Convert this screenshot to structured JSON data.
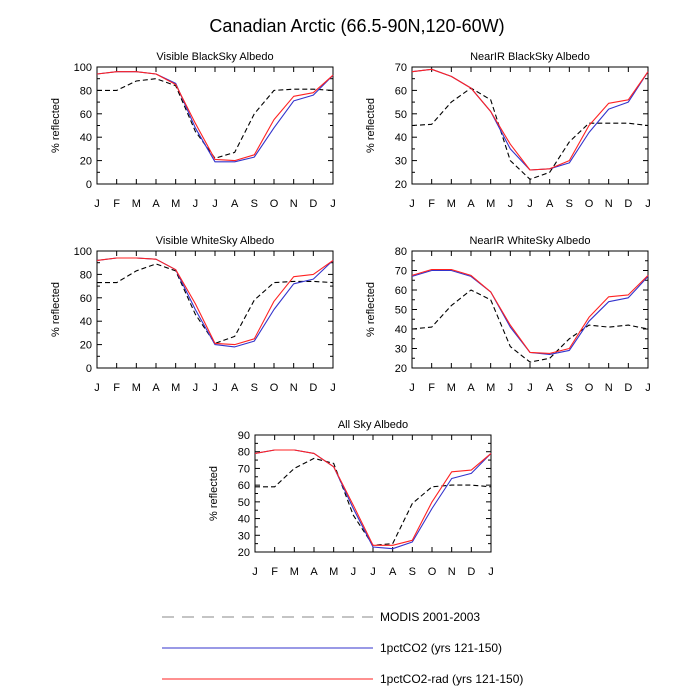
{
  "title": "Canadian Arctic (66.5-90N,120-60W)",
  "colors": {
    "modis": "#000000",
    "run1": "#3333cc",
    "run2": "#ff2222",
    "axis": "#000000"
  },
  "legend": [
    {
      "label": "MODIS 2001-2003",
      "color": "#000000",
      "dash": true
    },
    {
      "label": "1pctCO2 (yrs 121-150)",
      "color": "#3333cc",
      "dash": false
    },
    {
      "label": "1pctCO2-rad (yrs 121-150)",
      "color": "#ff2222",
      "dash": false
    }
  ],
  "chart_data": [
    {
      "type": "line",
      "title": "Visible BlackSky Albedo",
      "ylabel": "% reflected",
      "categories": [
        "J",
        "F",
        "M",
        "A",
        "M",
        "J",
        "J",
        "A",
        "S",
        "O",
        "N",
        "D",
        "J"
      ],
      "ylim": [
        0,
        100
      ],
      "yticks": [
        0,
        20,
        40,
        60,
        80,
        100
      ],
      "series": [
        {
          "name": "MODIS 2001-2003",
          "values": [
            80,
            80,
            88,
            90,
            84,
            45,
            22,
            27,
            60,
            80,
            81,
            81,
            80
          ]
        },
        {
          "name": "1pctCO2 (yrs 121-150)",
          "values": [
            94,
            96,
            96,
            94,
            86,
            48,
            19,
            19,
            23,
            48,
            71,
            76,
            93
          ]
        },
        {
          "name": "1pctCO2-rad (yrs 121-150)",
          "values": [
            94,
            96,
            96,
            94,
            85,
            52,
            21,
            20,
            25,
            55,
            75,
            78,
            93
          ]
        }
      ]
    },
    {
      "type": "line",
      "title": "NearIR BlackSky Albedo",
      "ylabel": "% reflected",
      "categories": [
        "J",
        "F",
        "M",
        "A",
        "M",
        "J",
        "J",
        "A",
        "S",
        "O",
        "N",
        "D",
        "J"
      ],
      "ylim": [
        20,
        70
      ],
      "yticks": [
        20,
        30,
        40,
        50,
        60,
        70
      ],
      "series": [
        {
          "name": "MODIS 2001-2003",
          "values": [
            45,
            45.5,
            55,
            61,
            56,
            30,
            22,
            25,
            38,
            46,
            46,
            46,
            45
          ]
        },
        {
          "name": "1pctCO2 (yrs 121-150)",
          "values": [
            68,
            69,
            66,
            61,
            51,
            35,
            26,
            26.5,
            29,
            42,
            52,
            55,
            68
          ]
        },
        {
          "name": "1pctCO2-rad (yrs 121-150)",
          "values": [
            68,
            69,
            66,
            61,
            51,
            37,
            26,
            26.5,
            30,
            45,
            54.5,
            56,
            68
          ]
        }
      ]
    },
    {
      "type": "line",
      "title": "Visible WhiteSky Albedo",
      "ylabel": "% reflected",
      "categories": [
        "J",
        "F",
        "M",
        "A",
        "M",
        "J",
        "J",
        "A",
        "S",
        "O",
        "N",
        "D",
        "J"
      ],
      "ylim": [
        0,
        100
      ],
      "yticks": [
        0,
        20,
        40,
        60,
        80,
        100
      ],
      "series": [
        {
          "name": "MODIS 2001-2003",
          "values": [
            73,
            73,
            83,
            89,
            83,
            46,
            21,
            27,
            58,
            73,
            74,
            74,
            73
          ]
        },
        {
          "name": "1pctCO2 (yrs 121-150)",
          "values": [
            92,
            94,
            94,
            93,
            84,
            50,
            20,
            18,
            23,
            50,
            72,
            76,
            92
          ]
        },
        {
          "name": "1pctCO2-rad (yrs 121-150)",
          "values": [
            92,
            94,
            94,
            93,
            84,
            55,
            21,
            20,
            25,
            57,
            78,
            80,
            92
          ]
        }
      ]
    },
    {
      "type": "line",
      "title": "NearIR WhiteSky Albedo",
      "ylabel": "% reflected",
      "categories": [
        "J",
        "F",
        "M",
        "A",
        "M",
        "J",
        "J",
        "A",
        "S",
        "O",
        "N",
        "D",
        "J"
      ],
      "ylim": [
        20,
        80
      ],
      "yticks": [
        20,
        30,
        40,
        50,
        60,
        70,
        80
      ],
      "series": [
        {
          "name": "MODIS 2001-2003",
          "values": [
            40,
            41,
            52,
            60,
            55,
            31,
            23,
            25,
            35,
            42,
            41,
            42,
            40
          ]
        },
        {
          "name": "1pctCO2 (yrs 121-150)",
          "values": [
            67,
            70,
            70,
            67,
            59,
            41,
            28,
            27,
            29,
            44,
            54,
            56,
            67
          ]
        },
        {
          "name": "1pctCO2-rad (yrs 121-150)",
          "values": [
            67.5,
            70.5,
            70.5,
            67.5,
            59,
            42,
            28,
            27.5,
            30,
            46,
            56.5,
            57.5,
            67.5
          ]
        }
      ]
    },
    {
      "type": "line",
      "title": "All Sky Albedo",
      "ylabel": "% reflected",
      "categories": [
        "J",
        "F",
        "M",
        "A",
        "M",
        "J",
        "J",
        "A",
        "S",
        "O",
        "N",
        "D",
        "J"
      ],
      "ylim": [
        20,
        90
      ],
      "yticks": [
        20,
        30,
        40,
        50,
        60,
        70,
        80,
        90
      ],
      "series": [
        {
          "name": "MODIS 2001-2003",
          "values": [
            59,
            59,
            70,
            76,
            73,
            42,
            24,
            25,
            49,
            59,
            60,
            60,
            59
          ]
        },
        {
          "name": "1pctCO2 (yrs 121-150)",
          "values": [
            79,
            81,
            81,
            79,
            71,
            46,
            23,
            22,
            26,
            46,
            64,
            67,
            79
          ]
        },
        {
          "name": "1pctCO2-rad (yrs 121-150)",
          "values": [
            79,
            81,
            81,
            79,
            71,
            48,
            24,
            24,
            27,
            50,
            68,
            69,
            79
          ]
        }
      ]
    }
  ]
}
